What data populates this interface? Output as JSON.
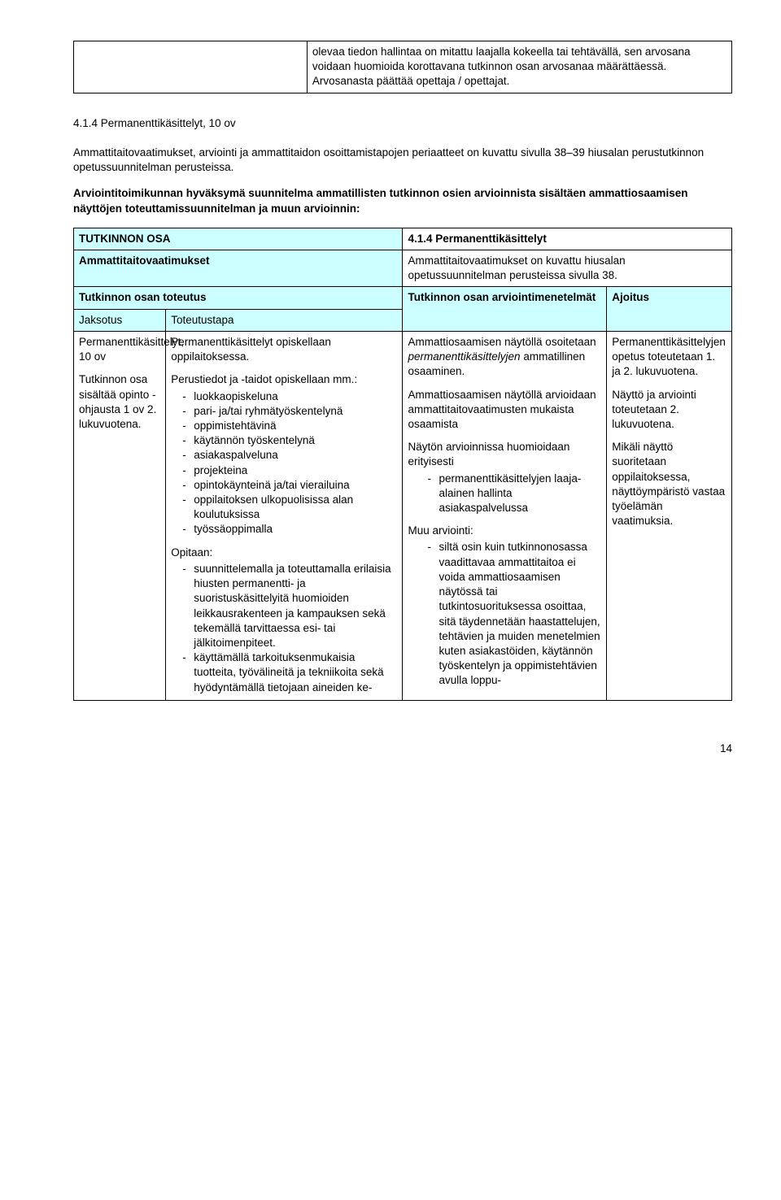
{
  "top_table": {
    "right_cell": "olevaa tiedon hallintaa on mitattu laajalla kokeella tai tehtävällä, sen arvosana voidaan huomioida korottavana tutkinnon osan arvosanaa määrättäessä. Arvosanasta päättää opettaja / opettajat."
  },
  "heading": "4.1.4 Permanenttikäsittelyt, 10 ov",
  "para1": "Ammattitaitovaatimukset, arviointi ja ammattitaidon osoittamistapojen periaatteet on kuvattu sivulla 38–39 hiusalan perustutkinnon opetussuunnitelman perusteissa.",
  "para2": "Arviointitoimikunnan hyväksymä suunnitelma ammatillisten tutkinnon osien arvioinnista sisältäen ammattiosaamisen näyttöjen toteuttamissuunnitelman ja muun arvioinnin:",
  "rows": {
    "r1c1": "TUTKINNON OSA",
    "r1c2": "4.1.4 Permanenttikäsittelyt",
    "r2c1": "Ammattitaitovaatimukset",
    "r2c2": "Ammattitaitovaatimukset on kuvattu hiusalan opetussuunnitelman perusteissa sivulla 38.",
    "r3c1": "Tutkinnon osan toteutus",
    "r3c3": "Tutkinnon osan arviointimenetelmät",
    "r3c4": "Ajoitus",
    "r4c1": "Jaksotus",
    "r4c2": "Toteutustapa"
  },
  "col1": {
    "p1": "Permanenttikäsittelyt, 10 ov",
    "p2": "Tutkinnon osa sisältää opinto - ohjausta 1 ov 2. lukuvuotena."
  },
  "col2": {
    "p1": "Permanenttikäsittelyt opiskellaan oppilaitoksessa.",
    "p2": "Perustiedot ja -taidot opiskellaan mm.:",
    "list1": [
      "luokkaopiskeluna",
      "pari- ja/tai ryhmätyöskentelynä",
      "oppimistehtävinä",
      "käytännön työskentelynä",
      "asiakaspalveluna",
      "projekteina",
      "opintokäynteinä ja/tai vierailuina",
      "oppilaitoksen ulkopuolisissa alan koulutuksissa",
      "työssäoppimalla"
    ],
    "p3": "Opitaan:",
    "list2": [
      "suunnittelemalla ja toteuttamalla erilaisia hiusten permanentti- ja suoristuskäsittelyitä huomioiden leikkausrakenteen ja kampauksen sekä tekemällä tarvittaessa esi- tai jälkitoimenpiteet.",
      "käyttämällä tarkoituksenmukaisia tuotteita, työvälineitä ja tekniikoita sekä hyödyntämällä tietojaan aineiden ke-"
    ]
  },
  "col3": {
    "p1a": "Ammattiosaamisen näytöllä osoitetaan ",
    "p1b_italic": "permanenttikäsittelyjen",
    "p1c": " ammatillinen osaaminen.",
    "p2": "Ammattiosaamisen näytöllä arvioidaan ammattitaitovaatimusten mukaista osaamista",
    "p3": "Näytön arvioinnissa huomioidaan erityisesti",
    "list1": [
      "permanenttikäsittelyjen laaja-alainen hallinta asiakaspalvelussa"
    ],
    "p4": "Muu arviointi:",
    "list2": [
      "siltä osin kuin tutkinnonosassa vaadittavaa ammattitaitoa ei voida ammattiosaamisen näytössä tai tutkintosuorituksessa osoittaa, sitä täydennetään haastattelujen, tehtävien ja muiden menetelmien kuten asiakastöiden, käytännön työskentelyn ja oppimistehtävien avulla loppu-"
    ]
  },
  "col4": {
    "p1": "Permanenttikäsittelyjen opetus toteutetaan 1. ja 2. lukuvuotena.",
    "p2": "Näyttö ja arviointi toteutetaan 2. lukuvuotena.",
    "p3": "Mikäli näyttö suoritetaan oppilaitoksessa, näyttöympäristö vastaa työelämän vaatimuksia."
  },
  "page_number": "14"
}
